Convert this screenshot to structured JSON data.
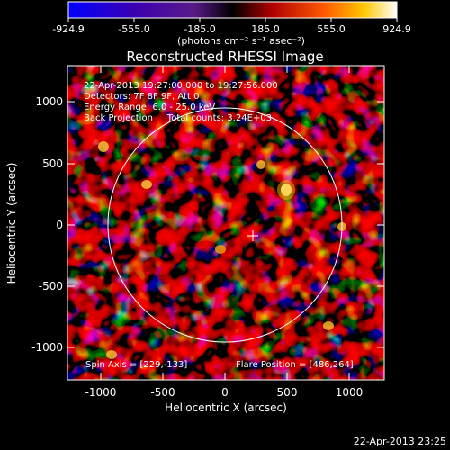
{
  "colorbar": {
    "ticks": [
      "-924.9",
      "-555.0",
      "-185.0",
      "185.0",
      "555.0",
      "924.9"
    ],
    "units": "(photons cm⁻² s⁻¹ asec⁻²)",
    "colors": [
      "#0000ff",
      "#3a00b0",
      "#5a1a8a",
      "#000000",
      "#cc0000",
      "#ff6000",
      "#ffd000",
      "#ffffff"
    ]
  },
  "image": {
    "title": "Reconstructed RHESSI Image",
    "info_lines": [
      "22-Apr-2013 19:27:00.000 to 19:27:56.000",
      "Detectors: 7F 8F 9F, Att 0",
      "Energy Range: 6.0 - 25.0 keV",
      "Back Projection     Total counts: 3.24E+03"
    ],
    "spin_axis": "Spin Axis = [229,-133]",
    "flare_position": "Flare Position = [486,264]",
    "xlabel": "Heliocentric X (arcsec)",
    "ylabel": "Heliocentric Y (arcsec)",
    "x_ticks": [
      "-1000",
      "-500",
      "0",
      "500",
      "1000"
    ],
    "y_ticks": [
      "1000",
      "500",
      "0",
      "-500",
      "-1000"
    ],
    "footer_timestamp": "22-Apr-2013 23:25"
  }
}
